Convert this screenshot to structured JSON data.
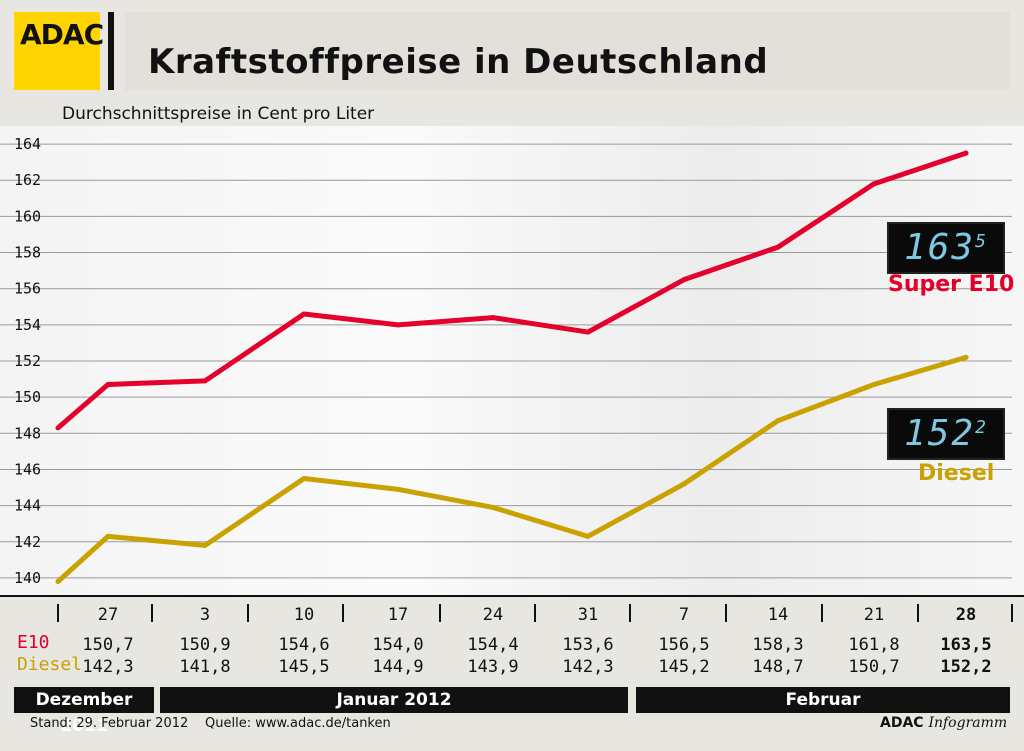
{
  "header": {
    "logo_text": "ADAC",
    "title": "Kraftstoffpreise in Deutschland",
    "subtitle": "Durchschnittspreise in Cent pro Liter"
  },
  "labels": {
    "e10_row": "E10",
    "diesel_row": "Diesel",
    "e10_badge_main": "163",
    "e10_badge_sup": "5",
    "diesel_badge_main": "152",
    "diesel_badge_sup": "2",
    "e10_series": "Super E10",
    "diesel_series": "Diesel"
  },
  "months": [
    "Dezember 2011",
    "Januar 2012",
    "Februar"
  ],
  "footer": {
    "stand": "Stand: 29. Februar 2012",
    "source": "Quelle: www.adac.de/tanken",
    "brand": "ADAC",
    "brand_italic": "Infogramm"
  },
  "colors": {
    "e10": "#e4002b",
    "diesel": "#c9a100",
    "grid": "#9a9a9a"
  },
  "chart_data": {
    "type": "line",
    "categories": [
      "27",
      "3",
      "10",
      "17",
      "24",
      "31",
      "7",
      "14",
      "21",
      "28"
    ],
    "ylim": [
      139,
      165
    ],
    "yticks": [
      140,
      142,
      144,
      146,
      148,
      150,
      152,
      154,
      156,
      158,
      160,
      162,
      164
    ],
    "series": [
      {
        "name": "E10",
        "values": [
          150.7,
          150.9,
          154.6,
          154.0,
          154.4,
          153.6,
          156.5,
          158.3,
          161.8,
          163.5
        ],
        "labels": [
          "150,7",
          "150,9",
          "154,6",
          "154,0",
          "154,4",
          "153,6",
          "156,5",
          "158,3",
          "161,8",
          "163,5"
        ],
        "line_start": 148.3
      },
      {
        "name": "Diesel",
        "values": [
          142.3,
          141.8,
          145.5,
          144.9,
          143.9,
          142.3,
          145.2,
          148.7,
          150.7,
          152.2
        ],
        "labels": [
          "142,3",
          "141,8",
          "145,5",
          "144,9",
          "143,9",
          "142,3",
          "145,2",
          "148,7",
          "150,7",
          "152,2"
        ],
        "line_start": 139.8
      }
    ],
    "grid": true
  }
}
